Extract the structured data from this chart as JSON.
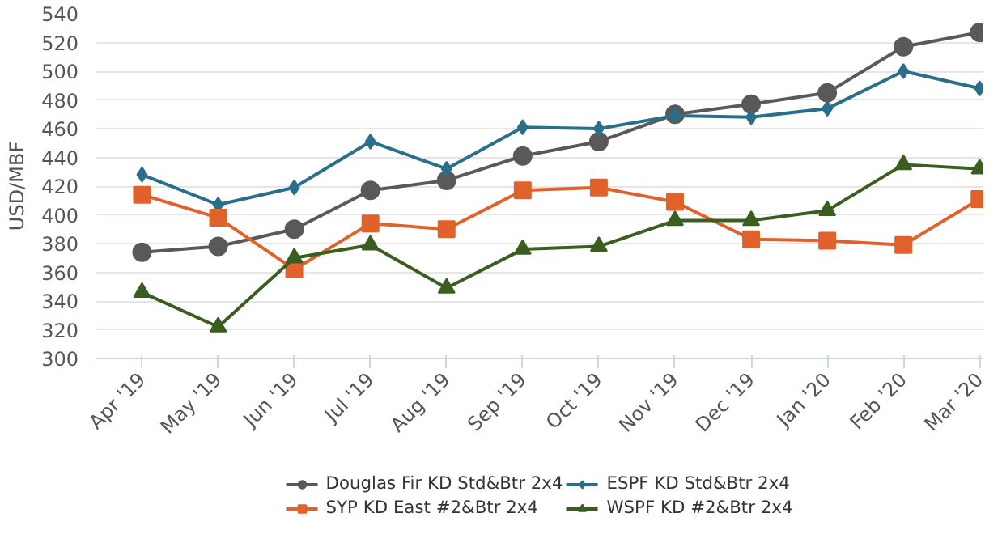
{
  "chart_data": {
    "type": "line",
    "ylabel": "USD/MBF",
    "categories": [
      "Apr '19",
      "May '19",
      "Jun '19",
      "Jul '19",
      "Aug '19",
      "Sep '19",
      "Oct '19",
      "Nov '19",
      "Dec '19",
      "Jan '20",
      "Feb '20",
      "Mar '20"
    ],
    "series": [
      {
        "name": "Douglas Fir KD Std&Btr 2x4",
        "color": "#595959",
        "marker": "circle",
        "values": [
          374,
          378,
          390,
          417,
          424,
          441,
          451,
          470,
          477,
          485,
          517,
          527
        ]
      },
      {
        "name": "ESPF KD Std&Btr 2x4",
        "color": "#2a6f8a",
        "marker": "diamond",
        "values": [
          428,
          407,
          419,
          451,
          432,
          461,
          460,
          469,
          468,
          474,
          500,
          488
        ]
      },
      {
        "name": "SYP KD East #2&Btr 2x4",
        "color": "#e0622a",
        "marker": "square",
        "values": [
          414,
          398,
          362,
          394,
          390,
          417,
          419,
          409,
          383,
          382,
          379,
          411
        ]
      },
      {
        "name": "WSPF KD #2&Btr 2x4",
        "color": "#3a5e1f",
        "marker": "triangle",
        "values": [
          346,
          322,
          370,
          379,
          349,
          376,
          378,
          396,
          396,
          403,
          435,
          432
        ]
      }
    ],
    "ylim": [
      300,
      540
    ],
    "yticks": [
      300,
      320,
      340,
      360,
      380,
      400,
      420,
      440,
      460,
      480,
      500,
      520,
      540
    ],
    "grid": "y",
    "legend": "bottom",
    "line_style": "solid"
  }
}
